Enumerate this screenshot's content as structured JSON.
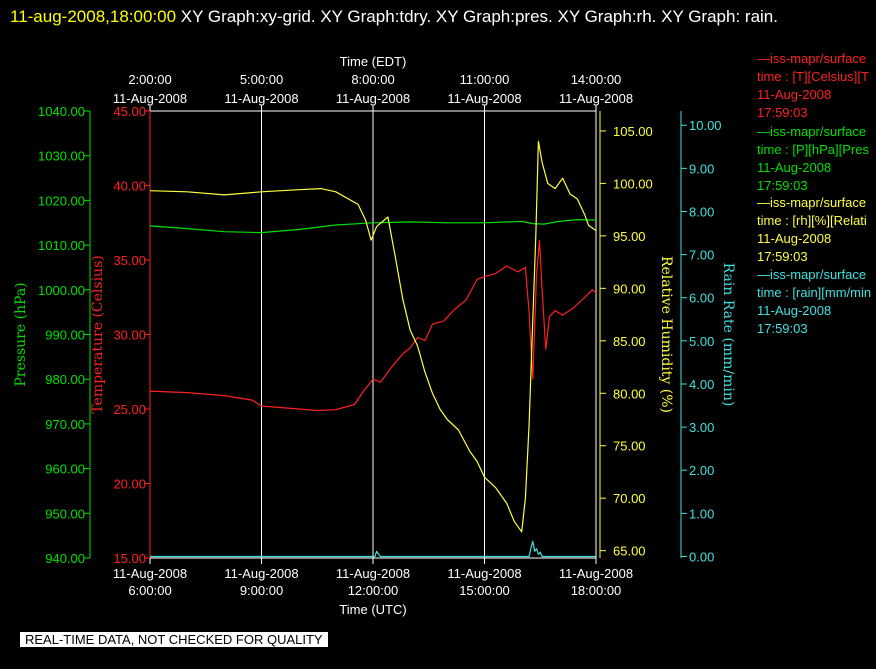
{
  "header": {
    "timestamp": "11-aug-2008,18:00:00",
    "graphs": "XY Graph:xy-grid.  XY Graph:tdry.  XY Graph:pres.  XY Graph:rh.  XY Graph: rain."
  },
  "notice": "REAL-TIME DATA, NOT CHECKED FOR QUALITY",
  "legend": [
    {
      "source": "—iss-mapr/surface",
      "desc": "time : [T][Celsius][T",
      "date": "11-Aug-2008",
      "time": "17:59:03",
      "color": "#ff2020"
    },
    {
      "source": "—iss-mapr/surface",
      "desc": "time : [P][hPa][Pres",
      "date": "11-Aug-2008",
      "time": "17:59:03",
      "color": "#00e000"
    },
    {
      "source": "—iss-mapr/surface",
      "desc": "time : [rh][%][Relati",
      "date": "11-Aug-2008",
      "time": "17:59:03",
      "color": "#ffff40"
    },
    {
      "source": "—iss-mapr/surface",
      "desc": "time : [rain][mm/min",
      "date": "11-Aug-2008",
      "time": "17:59:03",
      "color": "#40e0e0"
    }
  ],
  "chart_data": {
    "type": "line",
    "grid": true,
    "x_top": {
      "label": "Time (EDT)",
      "ticks": [
        {
          "time": "2:00:00",
          "date": "11-Aug-2008"
        },
        {
          "time": "5:00:00",
          "date": "11-Aug-2008"
        },
        {
          "time": "8:00:00",
          "date": "11-Aug-2008"
        },
        {
          "time": "11:00:00",
          "date": "11-Aug-2008"
        },
        {
          "time": "14:00:00",
          "date": "11-Aug-2008"
        }
      ]
    },
    "x_bottom": {
      "label": "Time (UTC)",
      "range_hours": [
        6,
        18
      ],
      "ticks": [
        {
          "time": "6:00:00",
          "date": "11-Aug-2008"
        },
        {
          "time": "9:00:00",
          "date": "11-Aug-2008"
        },
        {
          "time": "12:00:00",
          "date": "11-Aug-2008"
        },
        {
          "time": "15:00:00",
          "date": "11-Aug-2008"
        },
        {
          "time": "18:00:00",
          "date": "11-Aug-2008"
        }
      ]
    },
    "axes": [
      {
        "id": "pres",
        "label": "Pressure (hPa)",
        "color": "#00e000",
        "range": [
          940,
          1040
        ],
        "ticks": [
          "940.00",
          "950.00",
          "960.00",
          "970.00",
          "980.00",
          "990.00",
          "1000.00",
          "1010.00",
          "1020.00",
          "1030.00",
          "1040.00"
        ]
      },
      {
        "id": "temp",
        "label": "Temperature (Celsius)",
        "color": "#ff2020",
        "range": [
          15,
          45
        ],
        "ticks": [
          "15.00",
          "20.00",
          "25.00",
          "30.00",
          "35.00",
          "40.00",
          "45.00"
        ]
      },
      {
        "id": "rh",
        "label": "Relative Humidity (%)",
        "color": "#ffff40",
        "range": [
          64.3,
          106.9
        ],
        "ticks": [
          "65.00",
          "70.00",
          "75.00",
          "80.00",
          "85.00",
          "90.00",
          "95.00",
          "100.00",
          "105.00"
        ]
      },
      {
        "id": "rain",
        "label": "Rain Rate (mm/min)",
        "color": "#40e0e0",
        "range": [
          -0.035,
          10.33
        ],
        "ticks": [
          "0.00",
          "1.00",
          "2.00",
          "3.00",
          "4.00",
          "5.00",
          "6.00",
          "7.00",
          "8.00",
          "9.00",
          "10.00"
        ]
      }
    ],
    "series": [
      {
        "axis": "temp",
        "color": "#ff2020",
        "x": [
          6.0,
          7.0,
          8.0,
          8.75,
          9.0,
          10.0,
          10.5,
          11.0,
          11.5,
          11.75,
          12.0,
          12.2,
          12.5,
          12.8,
          13.0,
          13.2,
          13.4,
          13.6,
          13.9,
          14.2,
          14.5,
          14.8,
          15.0,
          15.3,
          15.6,
          15.9,
          16.1,
          16.2,
          16.3,
          16.4,
          16.48,
          16.55,
          16.65,
          16.75,
          16.9,
          17.1,
          17.4,
          17.7,
          17.9,
          18.0
        ],
        "y": [
          26.2,
          26.1,
          25.9,
          25.6,
          25.2,
          25.0,
          24.9,
          24.95,
          25.3,
          26.2,
          27.0,
          26.8,
          27.8,
          28.7,
          29.1,
          29.8,
          29.6,
          30.7,
          30.9,
          31.7,
          32.3,
          33.7,
          33.9,
          34.1,
          34.6,
          34.2,
          34.5,
          31.5,
          27.0,
          34.0,
          36.3,
          33.0,
          29.0,
          31.2,
          31.6,
          31.3,
          31.8,
          32.5,
          33.0,
          32.8
        ]
      },
      {
        "axis": "pres",
        "color": "#00e000",
        "x": [
          6.0,
          7.0,
          8.0,
          9.0,
          10.0,
          11.0,
          12.0,
          13.0,
          14.0,
          15.0,
          16.0,
          16.3,
          16.6,
          17.0,
          17.5,
          18.0
        ],
        "y": [
          1014.3,
          1013.7,
          1013.0,
          1012.8,
          1013.5,
          1014.5,
          1015.0,
          1015.2,
          1015.0,
          1015.0,
          1015.3,
          1014.8,
          1014.7,
          1015.3,
          1015.7,
          1015.6
        ]
      },
      {
        "axis": "rh",
        "color": "#ffff40",
        "x": [
          6.0,
          7.0,
          8.0,
          9.0,
          10.0,
          10.6,
          11.0,
          11.6,
          11.8,
          11.95,
          12.1,
          12.4,
          12.6,
          12.8,
          13.0,
          13.2,
          13.4,
          13.6,
          13.8,
          14.0,
          14.3,
          14.6,
          14.8,
          15.0,
          15.3,
          15.6,
          15.8,
          16.0,
          16.1,
          16.2,
          16.3,
          16.38,
          16.45,
          16.55,
          16.7,
          16.9,
          17.1,
          17.3,
          17.5,
          17.7,
          17.8,
          18.0
        ],
        "y": [
          99.3,
          99.2,
          98.9,
          99.2,
          99.4,
          99.5,
          99.2,
          98.0,
          96.5,
          94.6,
          95.9,
          96.8,
          93.0,
          89.0,
          86.0,
          84.5,
          82.0,
          80.0,
          78.5,
          77.5,
          76.5,
          74.5,
          73.5,
          72.0,
          71.0,
          69.5,
          67.8,
          66.8,
          70.0,
          77.0,
          87.0,
          95.0,
          104.0,
          102.0,
          100.0,
          99.5,
          100.5,
          99.0,
          98.5,
          97.0,
          96.0,
          95.5
        ]
      },
      {
        "axis": "rain",
        "color": "#40e0e0",
        "x": [
          6.0,
          12.05,
          12.1,
          12.15,
          12.2,
          16.1,
          16.2,
          16.25,
          16.3,
          16.35,
          16.4,
          16.45,
          16.5,
          16.55,
          18.0
        ],
        "y": [
          0.0,
          0.0,
          0.12,
          0.05,
          0.0,
          0.0,
          0.0,
          0.2,
          0.35,
          0.12,
          0.18,
          0.05,
          0.1,
          0.0,
          0.0
        ]
      }
    ]
  }
}
